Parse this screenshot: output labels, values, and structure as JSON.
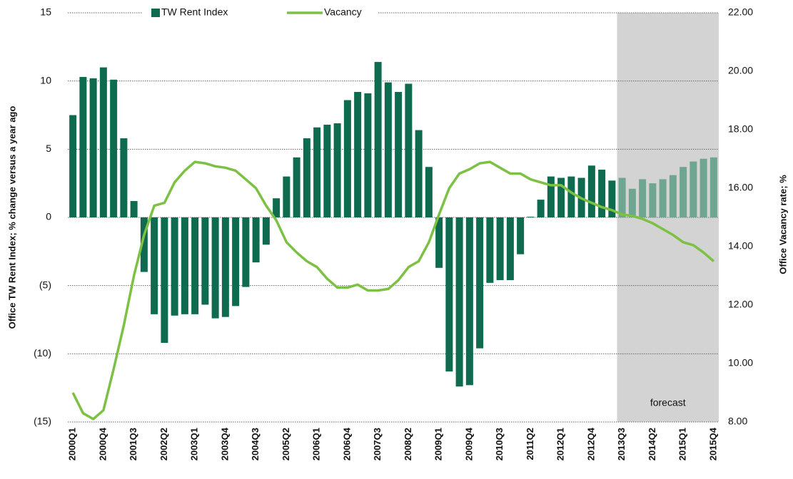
{
  "chart_data": {
    "type": "bar_line",
    "categories": [
      "2000Q1",
      null,
      null,
      "2000Q4",
      null,
      null,
      "2001Q3",
      null,
      null,
      "2002Q2",
      null,
      null,
      "2003Q1",
      null,
      null,
      "2003Q4",
      null,
      null,
      "2004Q3",
      null,
      null,
      "2005Q2",
      null,
      null,
      "2006Q1",
      null,
      null,
      "2006Q4",
      null,
      null,
      "2007Q3",
      null,
      null,
      "2008Q2",
      null,
      null,
      "2009Q1",
      null,
      null,
      "2009Q4",
      null,
      null,
      "2010Q3",
      null,
      null,
      "2011Q2",
      null,
      null,
      "2012Q1",
      null,
      null,
      "2012Q4",
      null,
      null,
      "2013Q3",
      null,
      null,
      "2014Q2",
      null,
      null,
      "2015Q1",
      null,
      null,
      "2015Q4"
    ],
    "series": [
      {
        "name": "TW Rent Index",
        "type": "bar",
        "color": "#0f6b4f",
        "forecast_color": "#6ea692",
        "values": [
          7.5,
          10.3,
          10.2,
          11.0,
          10.1,
          5.8,
          1.2,
          -4.0,
          -7.1,
          -9.2,
          -7.2,
          -7.1,
          -7.1,
          -6.4,
          -7.4,
          -7.3,
          -6.5,
          -5.1,
          -3.3,
          -2.0,
          1.4,
          3.0,
          4.4,
          5.8,
          6.6,
          6.8,
          6.9,
          8.6,
          9.2,
          9.1,
          11.4,
          9.9,
          9.2,
          9.8,
          6.4,
          3.7,
          -3.7,
          -11.3,
          -12.4,
          -12.3,
          -9.6,
          -4.8,
          -4.6,
          -4.6,
          -2.7,
          0.05,
          1.3,
          3.0,
          2.9,
          3.0,
          2.9,
          3.8,
          3.5,
          2.7,
          2.9,
          2.1,
          2.8,
          2.5,
          2.8,
          3.1,
          3.7,
          4.1,
          4.3,
          4.4
        ]
      },
      {
        "name": "Vacancy",
        "type": "line",
        "axis": "y2",
        "color": "#7cc143",
        "values": [
          9.0,
          8.3,
          8.1,
          8.4,
          9.8,
          11.3,
          13.0,
          14.4,
          15.4,
          15.5,
          16.2,
          16.6,
          16.9,
          16.85,
          16.75,
          16.7,
          16.6,
          16.3,
          16.0,
          15.4,
          14.9,
          14.15,
          13.8,
          13.5,
          13.3,
          12.9,
          12.6,
          12.6,
          12.7,
          12.5,
          12.5,
          12.55,
          12.85,
          13.3,
          13.5,
          14.15,
          15.1,
          16.0,
          16.5,
          16.65,
          16.85,
          16.9,
          16.7,
          16.5,
          16.5,
          16.3,
          16.2,
          16.1,
          16.1,
          15.85,
          15.65,
          15.5,
          15.35,
          15.25,
          15.1,
          15.05,
          14.95,
          14.8,
          14.6,
          14.4,
          14.15,
          14.05,
          13.8,
          13.5
        ]
      }
    ],
    "ylabel": "Office TW Rent Index;  % change versus a year ago",
    "y2label": "Office Vacancy rate; %",
    "ylim": [
      -15,
      15
    ],
    "yticks": [
      {
        "value": -15,
        "label": "(15)"
      },
      {
        "value": -10,
        "label": "(10)"
      },
      {
        "value": -5,
        "label": "(5)"
      },
      0,
      5,
      10,
      15
    ],
    "y2lim": [
      8,
      22
    ],
    "y2ticks": [
      {
        "value": 8,
        "label": "8.00"
      },
      {
        "value": 10,
        "label": "10.00"
      },
      {
        "value": 12,
        "label": "12.00"
      },
      {
        "value": 14,
        "label": "14.00"
      },
      {
        "value": 16,
        "label": "16.00"
      },
      {
        "value": 18,
        "label": "18.00"
      },
      {
        "value": 20,
        "label": "20.00"
      },
      {
        "value": 22,
        "label": "22.00"
      }
    ],
    "grid": true,
    "legend": "top",
    "annotation": {
      "text": "forecast",
      "from": "2013Q3",
      "to": "2015Q4",
      "color": "#d3d3d3"
    }
  }
}
